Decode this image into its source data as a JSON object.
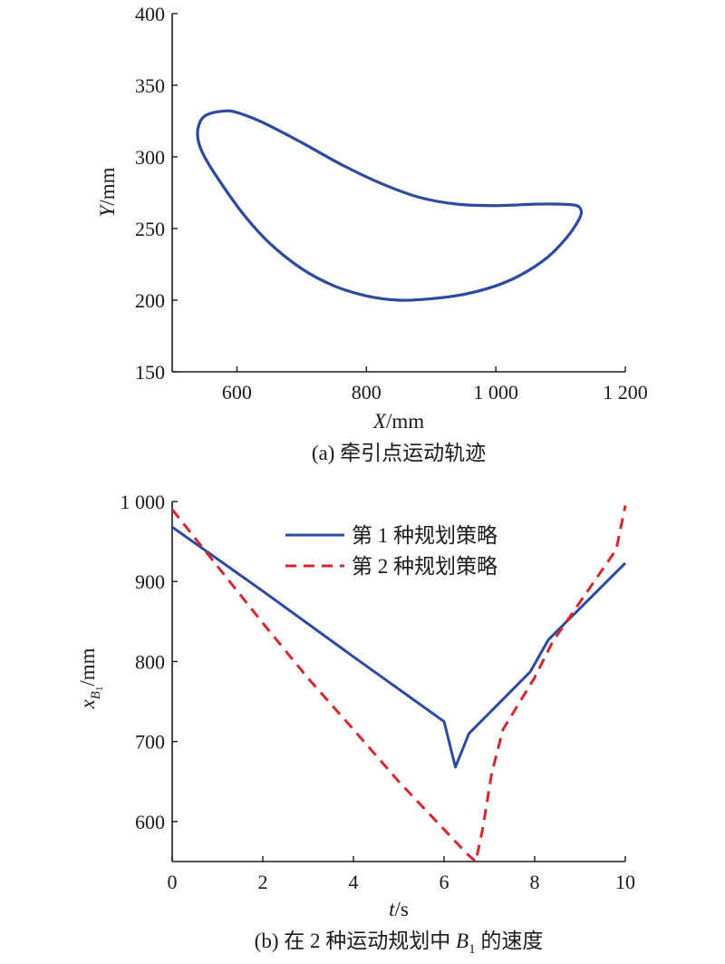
{
  "colors": {
    "series1": "#2b4aa0",
    "series2": "#d8262f",
    "axis": "#1a1a1a"
  },
  "chart_data": [
    {
      "type": "line",
      "caption": "(a) 牵引点运动轨迹",
      "xlabel_italic": "X",
      "xlabel_unit": "/mm",
      "ylabel_italic": "Y",
      "ylabel_unit": "/mm",
      "xlim": [
        500,
        1200
      ],
      "ylim": [
        150,
        400
      ],
      "xticks": [
        600,
        800,
        1000,
        1200
      ],
      "xtick_labels": [
        "600",
        "800",
        "1 000",
        "1 200"
      ],
      "yticks": [
        150,
        200,
        250,
        300,
        350,
        400
      ],
      "ytick_labels": [
        "150",
        "200",
        "250",
        "300",
        "350",
        "400"
      ],
      "grid": false,
      "series": [
        {
          "closed": true,
          "points": [
            [
              580,
              332
            ],
            [
              600,
              331
            ],
            [
              640,
              324
            ],
            [
              700,
              310
            ],
            [
              760,
              295
            ],
            [
              820,
              282
            ],
            [
              880,
              272
            ],
            [
              940,
              267
            ],
            [
              1000,
              266
            ],
            [
              1060,
              267
            ],
            [
              1100,
              267
            ],
            [
              1125,
              266
            ],
            [
              1132,
              262
            ],
            [
              1128,
              256
            ],
            [
              1110,
              244
            ],
            [
              1080,
              230
            ],
            [
              1040,
              218
            ],
            [
              1000,
              210
            ],
            [
              950,
              204
            ],
            [
              900,
              201
            ],
            [
              850,
              200
            ],
            [
              800,
              203
            ],
            [
              750,
              210
            ],
            [
              700,
              222
            ],
            [
              650,
              240
            ],
            [
              610,
              260
            ],
            [
              575,
              282
            ],
            [
              550,
              300
            ],
            [
              540,
              312
            ],
            [
              541,
              322
            ],
            [
              552,
              329
            ],
            [
              580,
              332
            ]
          ]
        }
      ]
    },
    {
      "type": "line",
      "caption_prefix": "(b) 在 2 种运动规划中 ",
      "caption_var": "B",
      "caption_sub": "1",
      "caption_suffix": " 的速度",
      "xlabel_italic": "t",
      "xlabel_unit": "/s",
      "ylabel_italic": "x",
      "ylabel_sub_italic": "B",
      "ylabel_subsub": "1",
      "ylabel_unit": "/mm",
      "xlim": [
        0,
        10
      ],
      "ylim": [
        550,
        1000
      ],
      "xticks": [
        0,
        2,
        4,
        6,
        8,
        10
      ],
      "xtick_labels": [
        "0",
        "2",
        "4",
        "6",
        "8",
        "10"
      ],
      "yticks": [
        600,
        700,
        800,
        900,
        1000
      ],
      "ytick_labels": [
        "600",
        "700",
        "800",
        "900",
        "1 000"
      ],
      "grid": false,
      "legend_position": "top-center",
      "series": [
        {
          "name": "第 1 种规划策略",
          "style": "solid",
          "points": [
            [
              0,
              968
            ],
            [
              2,
              888
            ],
            [
              4,
              806
            ],
            [
              6,
              725
            ],
            [
              6.25,
              668
            ],
            [
              6.55,
              710
            ],
            [
              7.9,
              787
            ],
            [
              8.3,
              827
            ],
            [
              10,
              923
            ]
          ]
        },
        {
          "name": "第 2 种规划策略",
          "style": "dashed",
          "points": [
            [
              0,
              990
            ],
            [
              1,
              919
            ],
            [
              2,
              848
            ],
            [
              3,
              779
            ],
            [
              4,
              715
            ],
            [
              5,
              650
            ],
            [
              6,
              590
            ],
            [
              6.5,
              560
            ],
            [
              6.7,
              550
            ],
            [
              6.85,
              590
            ],
            [
              7.05,
              660
            ],
            [
              7.3,
              715
            ],
            [
              8,
              780
            ],
            [
              8.4,
              825
            ],
            [
              9.8,
              940
            ],
            [
              10,
              995
            ]
          ]
        }
      ]
    }
  ]
}
